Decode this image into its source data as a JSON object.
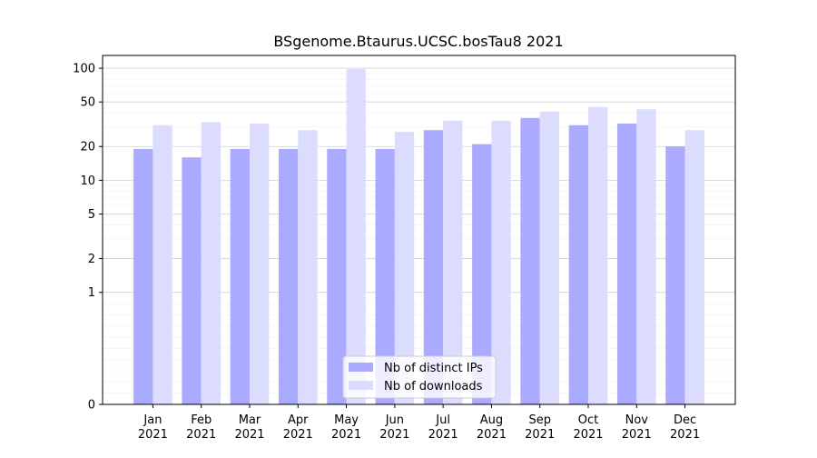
{
  "chart_data": {
    "type": "bar",
    "title": "BSgenome.Btaurus.UCSC.bosTau8 2021",
    "xlabel": "",
    "ylabel": "",
    "y_scale": "symlog",
    "ylim": [
      0,
      130
    ],
    "y_major_ticks": [
      0,
      1,
      2,
      5,
      10,
      20,
      50,
      100
    ],
    "y_tick_labels": [
      "0",
      "1",
      "2",
      "5",
      "10",
      "20",
      "50",
      "100"
    ],
    "categories": [
      {
        "month": "Jan",
        "year": "2021"
      },
      {
        "month": "Feb",
        "year": "2021"
      },
      {
        "month": "Mar",
        "year": "2021"
      },
      {
        "month": "Apr",
        "year": "2021"
      },
      {
        "month": "May",
        "year": "2021"
      },
      {
        "month": "Jun",
        "year": "2021"
      },
      {
        "month": "Jul",
        "year": "2021"
      },
      {
        "month": "Aug",
        "year": "2021"
      },
      {
        "month": "Sep",
        "year": "2021"
      },
      {
        "month": "Oct",
        "year": "2021"
      },
      {
        "month": "Nov",
        "year": "2021"
      },
      {
        "month": "Dec",
        "year": "2021"
      }
    ],
    "series": [
      {
        "name": "Nb of distinct IPs",
        "color": "#aaaaff",
        "values": [
          19,
          16,
          19,
          19,
          19,
          19,
          28,
          21,
          36,
          31,
          32,
          20
        ]
      },
      {
        "name": "Nb of downloads",
        "color": "#dcdcff",
        "values": [
          31,
          33,
          32,
          28,
          98,
          27,
          34,
          34,
          41,
          45,
          43,
          28
        ]
      }
    ],
    "grid": {
      "y_major": true,
      "y_minor": true
    },
    "legend_position": "lower-center"
  }
}
